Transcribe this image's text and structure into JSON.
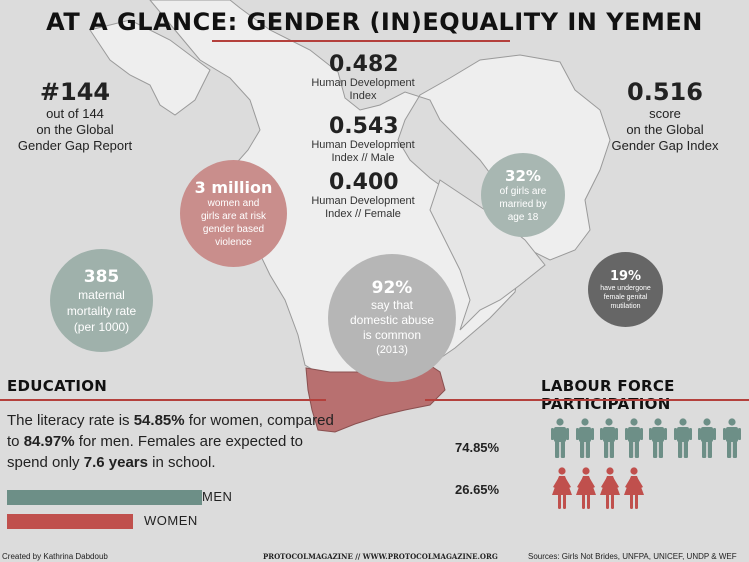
{
  "title": "AT A GLANCE: GENDER (IN)EQUALITY IN YEMEN",
  "left_stat": {
    "value": "#144",
    "line1": "out of 144",
    "line2": "on the Global",
    "line3": "Gender Gap Report"
  },
  "right_stat": {
    "value": "0.516",
    "line1": "score",
    "line2": "on the Global",
    "line3": "Gender Gap Index"
  },
  "hdi": [
    {
      "value": "0.482",
      "line1": "Human Development",
      "line2": "Index"
    },
    {
      "value": "0.543",
      "line1": "Human Development",
      "line2": "Index // Male"
    },
    {
      "value": "0.400",
      "line1": "Human Development",
      "line2": "Index // Female"
    }
  ],
  "circles": {
    "violence": {
      "value": "3 million",
      "l1": "women and",
      "l2": "girls are at risk",
      "l3": "gender based",
      "l4": "violence",
      "color": "#c98e8c"
    },
    "married": {
      "value": "32%",
      "l1": "of girls are",
      "l2": "married by",
      "l3": "age 18",
      "color": "#a8b7b2"
    },
    "maternal": {
      "value": "385",
      "l1": "maternal",
      "l2": "mortality rate",
      "l3": "(per 1000)",
      "color": "#9fb1ab"
    },
    "abuse": {
      "value": "92%",
      "l1": "say that",
      "l2": "domestic abuse",
      "l3": "is common",
      "l4": "(2013)",
      "color": "#b6b6b6"
    },
    "fgm": {
      "value": "19%",
      "l1": "have undergone",
      "l2": "female genital",
      "l3": "mutilation",
      "color": "#666666"
    }
  },
  "education": {
    "heading": "EDUCATION",
    "text_a": "The literacy rate is ",
    "val_women": "54.85%",
    "text_b": " for women, compared to ",
    "val_men": "84.97%",
    "text_c": " for men. Females are expected to spend only ",
    "val_years": "7.6 years",
    "text_d": " in school.",
    "men_label": "MEN",
    "women_label": "WOMEN",
    "men_rate": 0.8497,
    "women_rate": 0.5485,
    "men_color": "#6d8f87",
    "women_color": "#c0504d"
  },
  "labour": {
    "heading": "LABOUR FORCE PARTICIPATION",
    "men_value": "74.85%",
    "women_value": "26.65%",
    "men_icons": 8,
    "women_icons": 4,
    "men_color": "#6d8f87",
    "women_color": "#c0504d"
  },
  "footer": {
    "left": "Created by Kathrina Dabdoub",
    "center": "PROTOCOLMAGAZINE // WWW.PROTOCOLMAGAZINE.ORG",
    "right": "Sources: Girls Not Brides, UNFPA, UNICEF, UNDP & WEF"
  },
  "colors": {
    "accent": "#b4403c",
    "yemen": "#b87070"
  }
}
